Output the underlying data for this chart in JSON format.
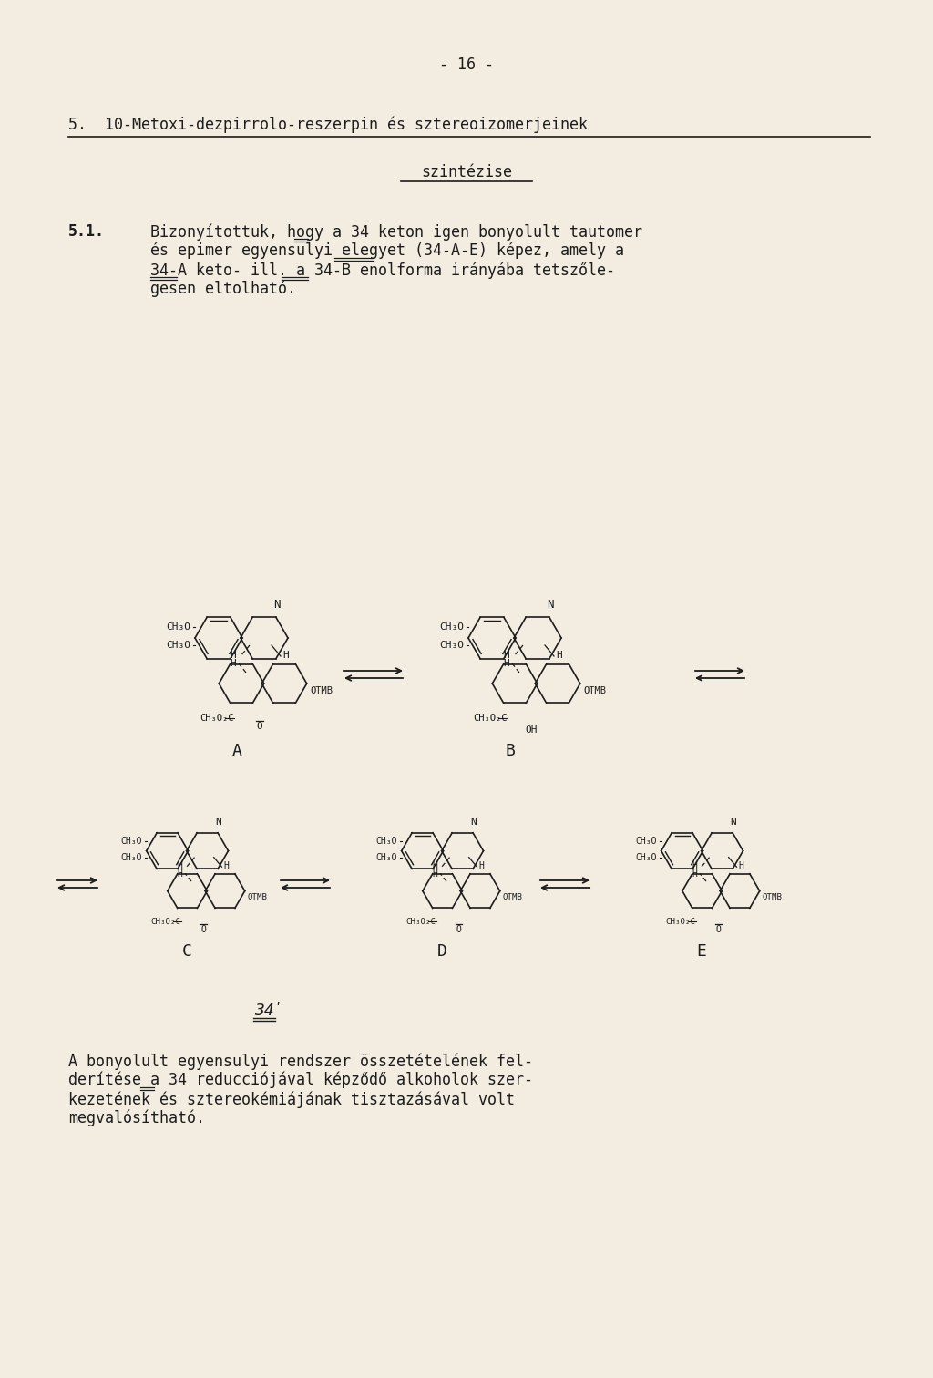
{
  "background_color": "#f2ede0",
  "page_number": "- 16 -",
  "section_title": "5.  10-Metoxi-dezpirrolo-reszerpin és sztereoizomerjeinek",
  "section_subtitle": "szintézise",
  "section_num": "5.1.",
  "body_line1": "Bizonyítottuk, hogy a 34 keton igen bonyolult tautomer",
  "body_line2": "és epimer egyensulyi elegyet (34-A-E) képez, amely a",
  "body_line3": "34-A keto- ill. a 34-B enolforma irányába tetszőle-",
  "body_line4": "gesen eltolható.",
  "bottom_line1": "A bonyolult egyensulyi rendszer összetételének fel-",
  "bottom_line2": "derítése a 34 reducciójával képződő alkoholok szer-",
  "bottom_line3": "kezetének és sztereokémiájának tisztazásával volt",
  "bottom_line4": "megvalósítható.",
  "text_color": "#1c1c1c",
  "line_color": "#1c1c1c"
}
